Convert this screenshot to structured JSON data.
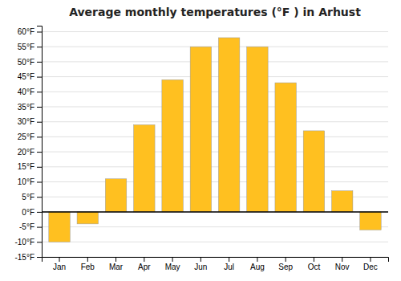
{
  "chart_data": {
    "type": "bar",
    "title": "Average monthly temperatures (°F ) in Arhust",
    "categories": [
      "Jan",
      "Feb",
      "Mar",
      "Apr",
      "May",
      "Jun",
      "Jul",
      "Aug",
      "Sep",
      "Oct",
      "Nov",
      "Dec"
    ],
    "values": [
      -10,
      -4,
      11,
      29,
      44,
      55,
      58,
      55,
      43,
      27,
      7,
      -6
    ],
    "color": "#FFC020",
    "ylim": [
      -15,
      62
    ],
    "yticks": [
      {
        "value": -15,
        "label": "-15°F"
      },
      {
        "value": -10,
        "label": "-10°F"
      },
      {
        "value": -5,
        "label": "-5°F"
      },
      {
        "value": 0,
        "label": "0°F"
      },
      {
        "value": 5,
        "label": "5°F"
      },
      {
        "value": 10,
        "label": "10°F"
      },
      {
        "value": 15,
        "label": "15°F"
      },
      {
        "value": 20,
        "label": "20°F"
      },
      {
        "value": 25,
        "label": "25°F"
      },
      {
        "value": 30,
        "label": "30°F"
      },
      {
        "value": 35,
        "label": "35°F"
      },
      {
        "value": 40,
        "label": "40°F"
      },
      {
        "value": 45,
        "label": "45°F"
      },
      {
        "value": 50,
        "label": "50°F"
      },
      {
        "value": 55,
        "label": "55°F"
      },
      {
        "value": 60,
        "label": "60°F"
      }
    ],
    "grid": true
  }
}
